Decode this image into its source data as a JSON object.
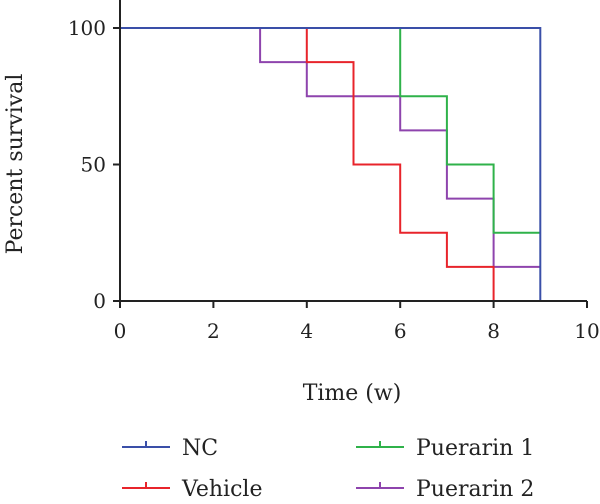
{
  "chart_data": {
    "type": "line",
    "title": "",
    "xlabel": "Time (w)",
    "ylabel": "Percent survival",
    "xlim": [
      0,
      10
    ],
    "ylim": [
      0,
      100
    ],
    "x_ticks": [
      0,
      2,
      4,
      6,
      8,
      10
    ],
    "y_ticks": [
      0,
      50,
      100
    ],
    "grid": false,
    "legend_position": "bottom",
    "series": [
      {
        "name": "NC",
        "color": "#3a4fa8",
        "step_points": [
          [
            0,
            100
          ],
          [
            9,
            100
          ],
          [
            9,
            0
          ]
        ]
      },
      {
        "name": "Vehicle",
        "color": "#e8242b",
        "step_points": [
          [
            0,
            100
          ],
          [
            4,
            100
          ],
          [
            4,
            87.5
          ],
          [
            5,
            87.5
          ],
          [
            5,
            50
          ],
          [
            6,
            50
          ],
          [
            6,
            25
          ],
          [
            7,
            25
          ],
          [
            7,
            12.5
          ],
          [
            8,
            12.5
          ],
          [
            8,
            0
          ]
        ]
      },
      {
        "name": "Puerarin 1",
        "color": "#2fb24a",
        "step_points": [
          [
            0,
            100
          ],
          [
            6,
            100
          ],
          [
            6,
            75
          ],
          [
            7,
            75
          ],
          [
            7,
            50
          ],
          [
            8,
            50
          ],
          [
            8,
            25
          ],
          [
            9,
            25
          ]
        ]
      },
      {
        "name": "Puerarin 2",
        "color": "#8e44ad",
        "step_points": [
          [
            0,
            100
          ],
          [
            3,
            100
          ],
          [
            3,
            87.5
          ],
          [
            4,
            87.5
          ],
          [
            4,
            75
          ],
          [
            6,
            75
          ],
          [
            6,
            62.5
          ],
          [
            7,
            62.5
          ],
          [
            7,
            37.5
          ],
          [
            8,
            37.5
          ],
          [
            8,
            12.5
          ],
          [
            9,
            12.5
          ]
        ]
      }
    ]
  }
}
